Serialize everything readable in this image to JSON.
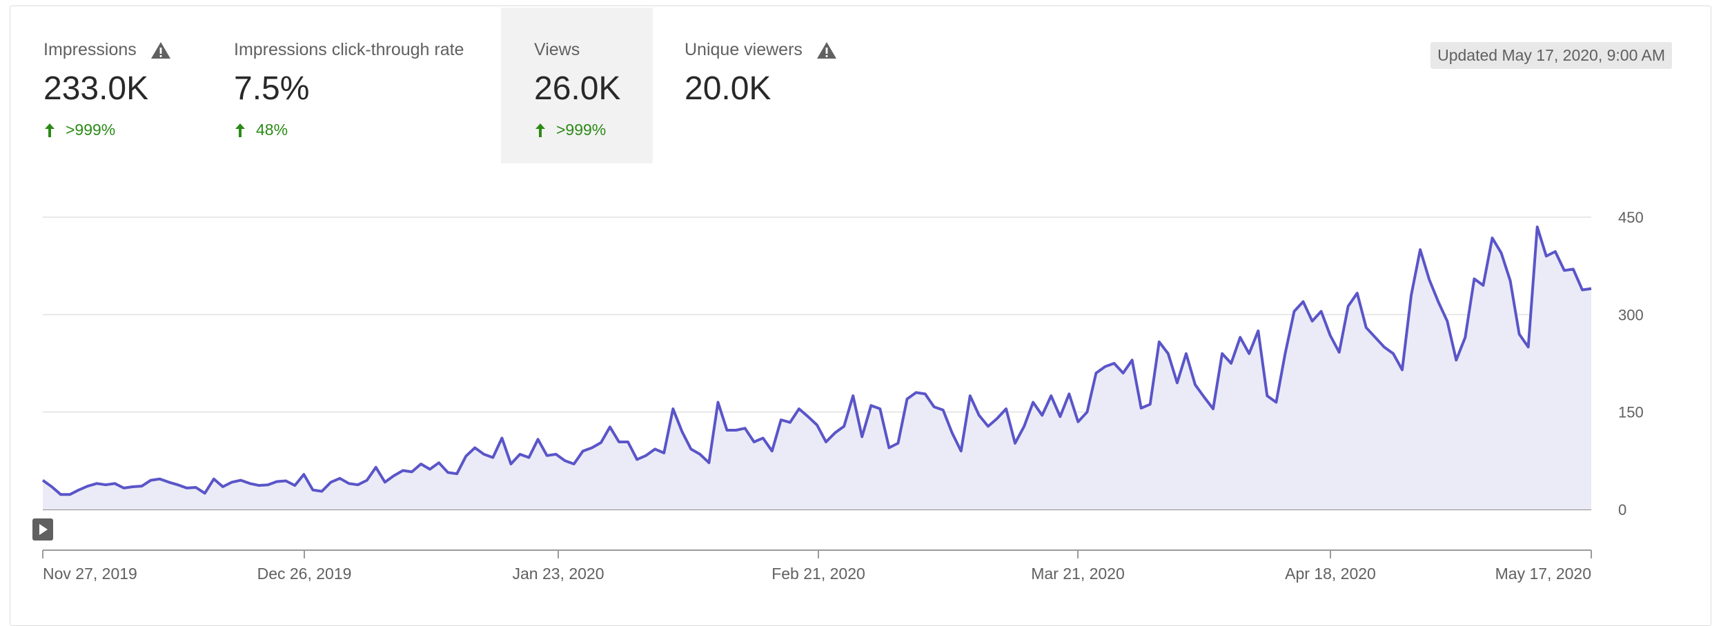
{
  "metrics": [
    {
      "label": "Impressions",
      "value": "233.0K",
      "change": ">999%",
      "warning": true,
      "selected": false
    },
    {
      "label": "Impressions click-through rate",
      "value": "7.5%",
      "change": "48%",
      "warning": false,
      "selected": false
    },
    {
      "label": "Views",
      "value": "26.0K",
      "change": ">999%",
      "warning": false,
      "selected": true
    },
    {
      "label": "Unique viewers",
      "value": "20.0K",
      "change": "",
      "warning": true,
      "selected": false
    }
  ],
  "updated": "Updated May 17, 2020, 9:00 AM",
  "colors": {
    "line": "#5a55c8",
    "area": "#ebebf7",
    "positive": "#2b8a16",
    "selected_bg": "#f2f2f2"
  },
  "icons": {
    "warning": "warning-triangle-icon",
    "arrow": "arrow-up-icon",
    "play": "play-icon"
  },
  "chart_data": {
    "type": "area",
    "title": "",
    "xlabel": "",
    "ylabel": "",
    "ylim": [
      0,
      450
    ],
    "yticks": [
      0,
      150,
      300,
      450
    ],
    "x_tick_labels": [
      "Nov 27, 2019",
      "Dec 26, 2019",
      "Jan 23, 2020",
      "Feb 21, 2020",
      "Mar 21, 2020",
      "Apr 18, 2020",
      "May 17, 2020"
    ],
    "x_start": "Nov 27, 2019",
    "x_end": "May 17, 2020",
    "grid": true,
    "series": [
      {
        "values": [
          45,
          35,
          23,
          23,
          30,
          36,
          40,
          38,
          40,
          33,
          35,
          36,
          45,
          47,
          42,
          38,
          33,
          34,
          25,
          47,
          35,
          42,
          45,
          40,
          37,
          38,
          43,
          44,
          37,
          54,
          30,
          28,
          42,
          48,
          40,
          38,
          45,
          65,
          42,
          52,
          60,
          58,
          70,
          62,
          72,
          57,
          55,
          82,
          95,
          85,
          80,
          110,
          70,
          85,
          80,
          108,
          83,
          85,
          75,
          70,
          90,
          95,
          103,
          127,
          104,
          104,
          77,
          83,
          93,
          87,
          155,
          120,
          93,
          85,
          72,
          165,
          122,
          122,
          125,
          104,
          110,
          90,
          138,
          134,
          155,
          143,
          130,
          104,
          118,
          128,
          175,
          112,
          160,
          155,
          95,
          102,
          170,
          180,
          178,
          158,
          153,
          118,
          90,
          175,
          145,
          128,
          140,
          155,
          102,
          128,
          165,
          145,
          175,
          143,
          178,
          135,
          150,
          210,
          220,
          225,
          210,
          230,
          156,
          162,
          258,
          240,
          195,
          240,
          192,
          173,
          155,
          240,
          225,
          265,
          240,
          275,
          175,
          165,
          240,
          305,
          320,
          290,
          305,
          268,
          242,
          313,
          333,
          280,
          265,
          250,
          240,
          215,
          330,
          400,
          354,
          320,
          290,
          230,
          265,
          355,
          345,
          418,
          395,
          352,
          270,
          250,
          435,
          390,
          397,
          368,
          370,
          338,
          340
        ]
      }
    ]
  }
}
